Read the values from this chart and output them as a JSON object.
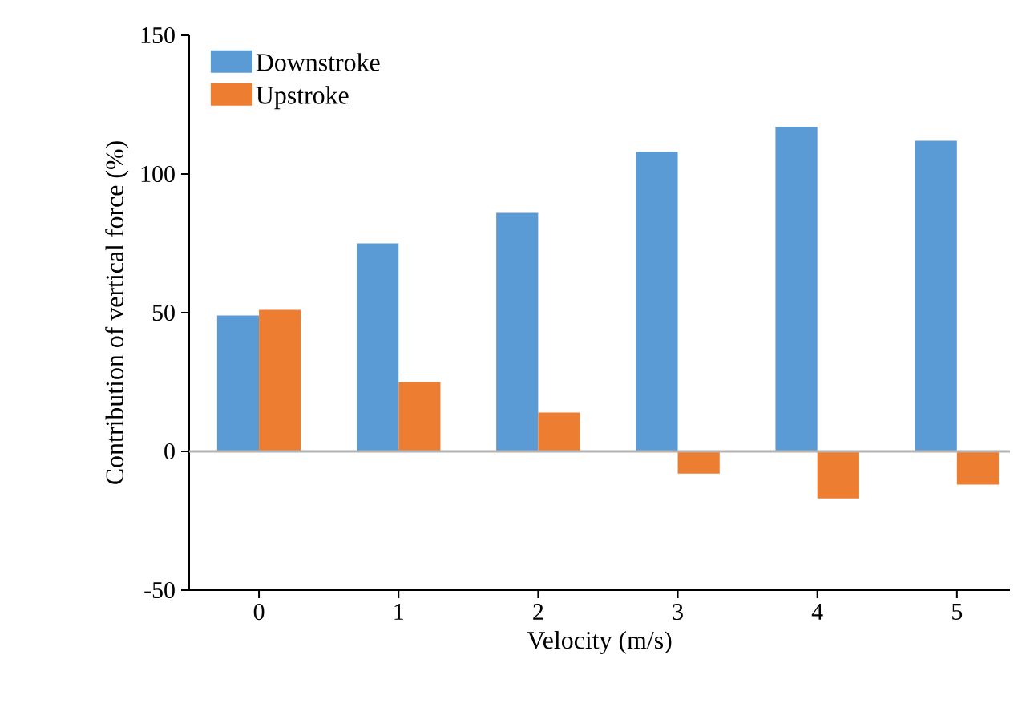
{
  "chart_data": {
    "type": "bar",
    "categories": [
      "0",
      "1",
      "2",
      "3",
      "4",
      "5"
    ],
    "series": [
      {
        "name": "Downstroke",
        "color": "#5b9bd5",
        "values": [
          49,
          75,
          86,
          108,
          117,
          112
        ]
      },
      {
        "name": "Upstroke",
        "color": "#ed7d31",
        "values": [
          51,
          25,
          14,
          -8,
          -17,
          -12
        ]
      }
    ],
    "xlabel": "Velocity (m/s)",
    "ylabel": "Contribution of vertical force (%)",
    "ylim": [
      -50,
      150
    ],
    "yticks": [
      -50,
      0,
      50,
      100,
      150
    ],
    "ref_lines": [
      {
        "axis": "y",
        "value": 0,
        "color": "#b4b4b4"
      }
    ],
    "legend": "top left",
    "grid": false
  }
}
